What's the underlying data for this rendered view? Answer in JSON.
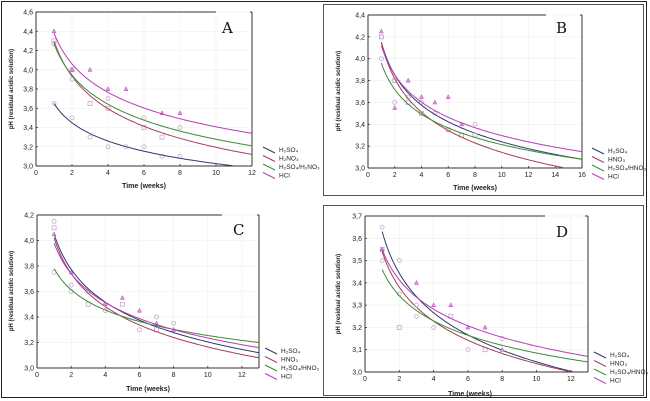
{
  "colors": {
    "H2SO4": "#2f3a6b",
    "HNO3": "#a0405a",
    "H2SO4_HNO3": "#3f8a3a",
    "HCl": "#b23fb5",
    "points": "#c9a8c9"
  },
  "chart_data": [
    {
      "type": "scatter",
      "panel": "A",
      "title": "A",
      "xlabel": "Time  (weeks)",
      "ylabel": "pH  (residual acidic solution)",
      "xlim": [
        0,
        12
      ],
      "ylim": [
        3.0,
        4.6
      ],
      "xticks": [
        "0",
        "2",
        "4",
        "6",
        "8",
        "10",
        "12"
      ],
      "yticks": [
        "3,0",
        "3,2",
        "3,4",
        "3,6",
        "3,8",
        "4,0",
        "4,2",
        "4,4",
        "4,6"
      ],
      "legend": [
        "H₂SO₄",
        "H₂NO₃",
        "H₂SO₄/H₂NO₃",
        "HCl"
      ],
      "legend_position": "right-bottom-outside",
      "series": [
        {
          "name": "H₂SO₄",
          "key": "H2SO4",
          "fit": [
            3.65,
            2.98
          ],
          "x": [
            1,
            2,
            3,
            4,
            5,
            6,
            7,
            8
          ],
          "y": [
            3.65,
            3.5,
            3.3,
            3.2,
            3.2,
            3.2,
            3.1,
            3.1
          ]
        },
        {
          "name": "H₂NO₃",
          "key": "HNO3",
          "fit": [
            4.3,
            3.12
          ],
          "x": [
            1,
            2,
            3,
            4,
            6,
            7
          ],
          "y": [
            4.3,
            4.0,
            3.65,
            3.6,
            3.4,
            3.3
          ]
        },
        {
          "name": "H₂SO₄/H₂NO₃",
          "key": "H2SO4_HNO3",
          "fit": [
            4.27,
            3.21
          ],
          "x": [
            1,
            2,
            4,
            6,
            8
          ],
          "y": [
            4.27,
            3.9,
            3.7,
            3.5,
            3.4
          ]
        },
        {
          "name": "HCl",
          "key": "HCl",
          "fit": [
            4.38,
            3.34
          ],
          "x": [
            1,
            2,
            3,
            4,
            5,
            7,
            8
          ],
          "y": [
            4.4,
            4.0,
            4.0,
            3.8,
            3.8,
            3.55,
            3.55
          ]
        }
      ]
    },
    {
      "type": "scatter",
      "panel": "B",
      "title": "B",
      "xlabel": "Time  (weeks)",
      "ylabel": "pH  (residual acidic solution)",
      "xlim": [
        0,
        16
      ],
      "ylim": [
        3.0,
        4.4
      ],
      "xticks": [
        "0",
        "2",
        "4",
        "6",
        "8",
        "10",
        "12",
        "14",
        "16"
      ],
      "yticks": [
        "3,0",
        "3,2",
        "3,4",
        "3,6",
        "3,8",
        "4,0",
        "4,2",
        "4,4"
      ],
      "legend": [
        "H₂SO₄",
        "HNO₃",
        "H₂SO₄/HNO₃",
        "HCl"
      ],
      "legend_position": "right-bottom-outside",
      "series": [
        {
          "name": "H₂SO₄",
          "key": "H2SO4",
          "fit": [
            4.15,
            3.08
          ],
          "x": [
            1,
            2,
            3,
            4,
            5,
            6,
            7,
            8
          ],
          "y": [
            4.2,
            3.8,
            3.65,
            3.6,
            3.5,
            3.35,
            3.3,
            3.4
          ]
        },
        {
          "name": "HNO₃",
          "key": "HNO3",
          "fit": [
            4.15,
            2.97
          ],
          "x": [
            1,
            2,
            3,
            4,
            6,
            7,
            8
          ],
          "y": [
            4.2,
            3.8,
            3.6,
            3.5,
            3.35,
            3.3,
            3.3
          ]
        },
        {
          "name": "H₂SO₄/HNO₃",
          "key": "H2SO4_HNO3",
          "fit": [
            3.96,
            3.08
          ],
          "x": [
            1,
            2,
            4
          ],
          "y": [
            4.0,
            3.6,
            3.5
          ]
        },
        {
          "name": "HCl",
          "key": "HCl",
          "fit": [
            4.12,
            3.15
          ],
          "x": [
            1,
            2,
            3,
            4,
            5,
            6,
            7
          ],
          "y": [
            4.25,
            3.55,
            3.8,
            3.65,
            3.6,
            3.65,
            3.4
          ]
        }
      ]
    },
    {
      "type": "scatter",
      "panel": "C",
      "title": "C",
      "xlabel": "Time  (weeks)",
      "ylabel": "pH  (residual acidic solution)",
      "xlim": [
        0,
        13
      ],
      "ylim": [
        3.0,
        4.2
      ],
      "xticks": [
        "0",
        "2",
        "4",
        "6",
        "8",
        "10",
        "12"
      ],
      "yticks": [
        "3,0",
        "3,2",
        "3,4",
        "3,6",
        "3,8",
        "4,0",
        "4,2"
      ],
      "legend": [
        "H₂SO₄",
        "HNO₃",
        "H₂SO₄/HNO₃",
        "HCl"
      ],
      "legend_position": "right-bottom-outside",
      "series": [
        {
          "name": "H₂SO₄",
          "key": "H2SO4",
          "fit": [
            4.05,
            3.12
          ],
          "x": [
            1,
            2,
            3,
            4,
            6,
            7,
            8
          ],
          "y": [
            4.15,
            3.65,
            3.6,
            3.45,
            3.3,
            3.4,
            3.35
          ]
        },
        {
          "name": "HNO₃",
          "key": "HNO3",
          "fit": [
            4.02,
            3.08
          ],
          "x": [
            1,
            3,
            5,
            7
          ],
          "y": [
            4.1,
            3.5,
            3.5,
            3.3
          ]
        },
        {
          "name": "H₂SO₄/HNO₃",
          "key": "H2SO4_HNO3",
          "fit": [
            3.78,
            3.2
          ],
          "x": [
            1,
            2,
            4
          ],
          "y": [
            3.75,
            3.6,
            3.5
          ]
        },
        {
          "name": "HCl",
          "key": "HCl",
          "fit": [
            3.98,
            3.16
          ],
          "x": [
            1,
            2,
            4,
            5,
            6,
            7,
            8
          ],
          "y": [
            4.05,
            3.75,
            3.5,
            3.55,
            3.45,
            3.35,
            3.3
          ]
        }
      ]
    },
    {
      "type": "scatter",
      "panel": "D",
      "title": "D",
      "xlabel": "Time  (weeks)",
      "ylabel": "pH  (residual acidic solution)",
      "xlim": [
        0,
        13
      ],
      "ylim": [
        3.0,
        3.7
      ],
      "xticks": [
        "0",
        "2",
        "4",
        "6",
        "8",
        "10",
        "12"
      ],
      "yticks": [
        "3,0",
        "3,1",
        "3,2",
        "3,3",
        "3,4",
        "3,5",
        "3,6",
        "3,7"
      ],
      "legend": [
        "H₂SO₄",
        "HNO₃",
        "H₂SO₄/HNO₃",
        "HCl"
      ],
      "legend_position": "right-bottom-outside",
      "series": [
        {
          "name": "H₂SO₄",
          "key": "H2SO4",
          "fit": [
            3.63,
            2.985
          ],
          "x": [
            1,
            2,
            3,
            4,
            6,
            8
          ],
          "y": [
            3.65,
            3.5,
            3.25,
            3.2,
            3.1,
            3.15
          ]
        },
        {
          "name": "HNO₃",
          "key": "HNO3",
          "fit": [
            3.54,
            2.985
          ],
          "x": [
            1,
            2,
            5,
            7
          ],
          "y": [
            3.55,
            3.2,
            3.25,
            3.1
          ]
        },
        {
          "name": "H₂SO₄/HNO₃",
          "key": "H2SO4_HNO3",
          "fit": [
            3.46,
            3.045
          ],
          "x": [
            1,
            2,
            3
          ],
          "y": [
            3.5,
            3.35,
            3.3
          ]
        },
        {
          "name": "HCl",
          "key": "HCl",
          "fit": [
            3.55,
            3.07
          ],
          "x": [
            1,
            3,
            4,
            5,
            6,
            7,
            8
          ],
          "y": [
            3.55,
            3.4,
            3.3,
            3.3,
            3.2,
            3.2,
            3.1
          ]
        }
      ]
    }
  ]
}
